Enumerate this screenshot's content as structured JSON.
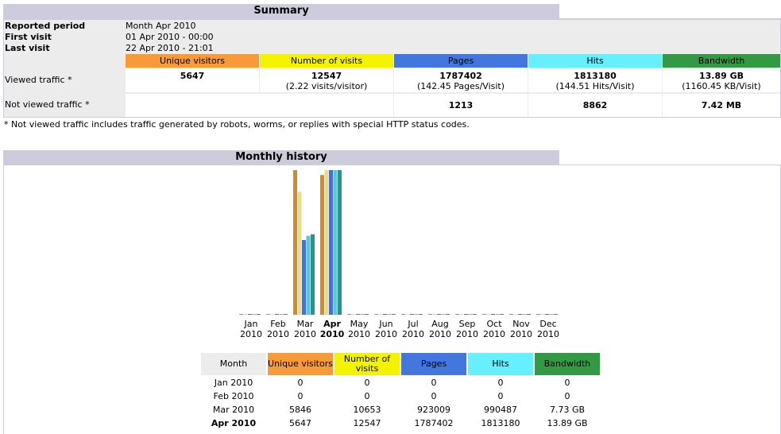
{
  "summary": {
    "title": "Summary",
    "reported_period_label": "Reported period",
    "reported_period_value": "Month Apr 2010",
    "first_visit_label": "First visit",
    "first_visit_value": "01 Apr 2010 - 00:00",
    "last_visit_label": "Last visit",
    "last_visit_value": "22 Apr 2010 - 21:01",
    "headers": {
      "unique_visitors": "Unique visitors",
      "visits": "Number of visits",
      "pages": "Pages",
      "hits": "Hits",
      "bandwidth": "Bandwidth"
    },
    "viewed": {
      "label": "Viewed traffic *",
      "unique_visitors": "5647",
      "visits": "12547",
      "visits_sub": "(2.22 visits/visitor)",
      "pages": "1787402",
      "pages_sub": "(142.45 Pages/Visit)",
      "hits": "1813180",
      "hits_sub": "(144.51 Hits/Visit)",
      "bandwidth": "13.89 GB",
      "bandwidth_sub": "(1160.45 KB/Visit)"
    },
    "not_viewed": {
      "label": "Not viewed traffic *",
      "pages": "1213",
      "hits": "8862",
      "bandwidth": "7.42 MB"
    },
    "note": "* Not viewed traffic includes traffic generated by robots, worms, or replies with special HTTP status codes."
  },
  "history": {
    "title": "Monthly history",
    "months": [
      {
        "m": "Jan",
        "y": "2010"
      },
      {
        "m": "Feb",
        "y": "2010"
      },
      {
        "m": "Mar",
        "y": "2010"
      },
      {
        "m": "Apr",
        "y": "2010"
      },
      {
        "m": "May",
        "y": "2010"
      },
      {
        "m": "Jun",
        "y": "2010"
      },
      {
        "m": "Jul",
        "y": "2010"
      },
      {
        "m": "Aug",
        "y": "2010"
      },
      {
        "m": "Sep",
        "y": "2010"
      },
      {
        "m": "Oct",
        "y": "2010"
      },
      {
        "m": "Nov",
        "y": "2010"
      },
      {
        "m": "Dec",
        "y": "2010"
      }
    ],
    "table_headers": {
      "month": "Month",
      "unique_visitors": "Unique visitors",
      "visits": "Number of visits",
      "pages": "Pages",
      "hits": "Hits",
      "bandwidth": "Bandwidth"
    },
    "rows": [
      {
        "month": "Jan 2010",
        "uv": "0",
        "visits": "0",
        "pages": "0",
        "hits": "0",
        "bw": "0"
      },
      {
        "month": "Feb 2010",
        "uv": "0",
        "visits": "0",
        "pages": "0",
        "hits": "0",
        "bw": "0"
      },
      {
        "month": "Mar 2010",
        "uv": "5846",
        "visits": "10653",
        "pages": "923009",
        "hits": "990487",
        "bw": "7.73 GB"
      },
      {
        "month": "Apr 2010",
        "uv": "5647",
        "visits": "12547",
        "pages": "1787402",
        "hits": "1813180",
        "bw": "13.89 GB"
      }
    ]
  },
  "chart_data": {
    "type": "bar",
    "categories": [
      "Jan 2010",
      "Feb 2010",
      "Mar 2010",
      "Apr 2010",
      "May 2010",
      "Jun 2010",
      "Jul 2010",
      "Aug 2010",
      "Sep 2010",
      "Oct 2010",
      "Nov 2010",
      "Dec 2010"
    ],
    "series": [
      {
        "name": "Unique visitors",
        "values": [
          0,
          0,
          5846,
          5647,
          0,
          0,
          0,
          0,
          0,
          0,
          0,
          0
        ]
      },
      {
        "name": "Number of visits",
        "values": [
          0,
          0,
          10653,
          12547,
          0,
          0,
          0,
          0,
          0,
          0,
          0,
          0
        ]
      },
      {
        "name": "Pages",
        "values": [
          0,
          0,
          923009,
          1787402,
          0,
          0,
          0,
          0,
          0,
          0,
          0,
          0
        ]
      },
      {
        "name": "Hits",
        "values": [
          0,
          0,
          990487,
          1813180,
          0,
          0,
          0,
          0,
          0,
          0,
          0,
          0
        ]
      },
      {
        "name": "Bandwidth",
        "values": [
          0,
          0,
          7.73,
          13.89,
          0,
          0,
          0,
          0,
          0,
          0,
          0,
          0
        ]
      }
    ],
    "title": "Monthly history",
    "colors": {
      "unique_visitors": "#f79a3a",
      "visits": "#f3f300",
      "pages": "#4477dd",
      "hits": "#66f0ff",
      "bandwidth": "#339944"
    },
    "bar_colors": {
      "unique_visitors": "#d08a30",
      "visits": "#e8dc8a",
      "pages": "#4a6fd0",
      "hits": "#55c8e0",
      "bandwidth": "#1a9c88"
    }
  }
}
